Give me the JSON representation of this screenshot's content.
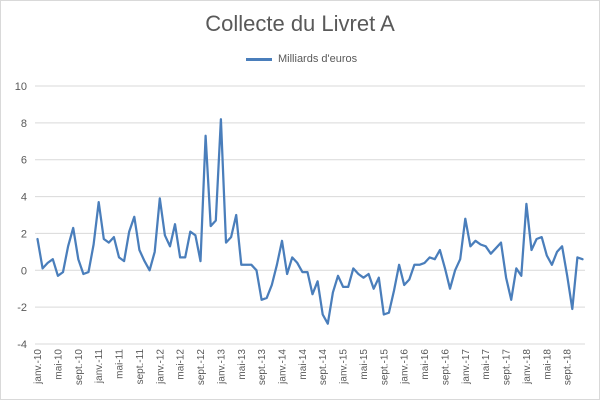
{
  "chart_data": {
    "type": "line",
    "title": "Collecte du Livret A",
    "xlabel": "",
    "ylabel": "",
    "ylim": [
      -4,
      10
    ],
    "yticks": [
      -4,
      -2,
      0,
      2,
      4,
      6,
      8,
      10
    ],
    "grid": true,
    "legend_position": "top-center",
    "x_tick_labels": [
      "janv.-10",
      "mai-10",
      "sept.-10",
      "janv.-11",
      "mai-11",
      "sept.-11",
      "janv.-12",
      "mai-12",
      "sept.-12",
      "janv.-13",
      "mai-13",
      "sept.-13",
      "janv.-14",
      "mai-14",
      "sept.-14",
      "janv.-15",
      "mai-15",
      "sept.-15",
      "janv.-16",
      "mai-16",
      "sept.-16",
      "janv.-17",
      "mai-17",
      "sept.-17",
      "janv.-18",
      "mai-18",
      "sept.-18"
    ],
    "tick_every": 4,
    "series": [
      {
        "name": "Milliards d'euros",
        "color": "#4a7ebb",
        "values": [
          1.7,
          0.1,
          0.4,
          0.6,
          -0.3,
          -0.1,
          1.3,
          2.3,
          0.6,
          -0.2,
          -0.1,
          1.4,
          3.7,
          1.7,
          1.5,
          1.8,
          0.7,
          0.5,
          2.1,
          2.9,
          1.1,
          0.5,
          0.0,
          1.0,
          3.9,
          1.9,
          1.3,
          2.5,
          0.7,
          0.7,
          2.1,
          1.9,
          0.5,
          7.3,
          2.4,
          2.7,
          8.2,
          1.5,
          1.8,
          3.0,
          0.3,
          0.3,
          0.3,
          0.0,
          -1.6,
          -1.5,
          -0.8,
          0.3,
          1.6,
          -0.2,
          0.7,
          0.4,
          -0.1,
          -0.1,
          -1.3,
          -0.6,
          -2.4,
          -2.9,
          -1.2,
          -0.3,
          -0.9,
          -0.9,
          0.1,
          -0.2,
          -0.4,
          -0.2,
          -1.0,
          -0.4,
          -2.4,
          -2.3,
          -1.1,
          0.3,
          -0.8,
          -0.5,
          0.3,
          0.3,
          0.4,
          0.7,
          0.6,
          1.1,
          0.1,
          -1.0,
          0.0,
          0.6,
          2.8,
          1.3,
          1.6,
          1.4,
          1.3,
          0.9,
          1.2,
          1.5,
          -0.4,
          -1.6,
          0.1,
          -0.3,
          3.6,
          1.1,
          1.7,
          1.8,
          0.8,
          0.3,
          1.0,
          1.3,
          -0.3,
          -2.1,
          0.7,
          0.6
        ]
      }
    ]
  }
}
